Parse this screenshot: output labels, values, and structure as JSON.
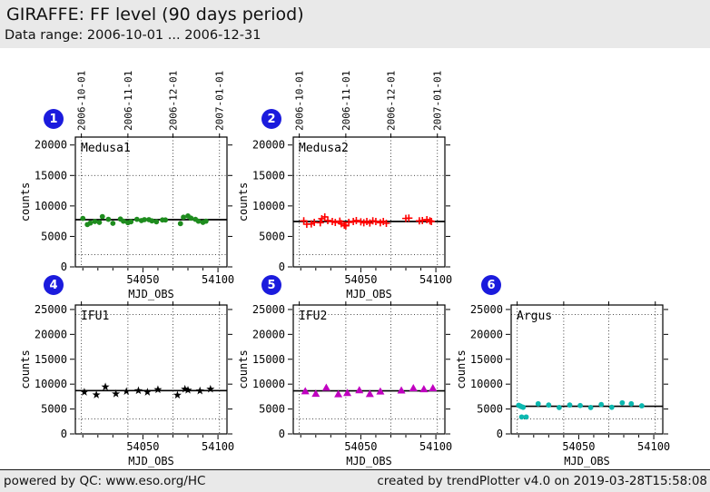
{
  "header": {
    "title": "GIRAFFE: FF level (90 days period)",
    "subtitle": "Data range: 2006-10-01 ... 2006-12-31"
  },
  "footer": {
    "left": "powered by QC: www.eso.org/HC",
    "right": "created by trendPlotter v4.0 on 2019-03-28T15:58:08"
  },
  "colors": {
    "header_bg": "#e9e9e9",
    "footer_bg": "#e9e9e9",
    "badge_blue": "#1b1bdd",
    "medusa1_green": "#1e8c1e",
    "medusa2_red": "#ff0000",
    "ifu1_black": "#000000",
    "ifu2_magenta": "#c000c0",
    "argus_teal": "#0cb8b0"
  },
  "chart_data": [
    {
      "badge": "1",
      "label": "Medusa1",
      "type": "scatter",
      "marker": "circle",
      "color": "#1e8c1e",
      "xlabel": "MJD_OBS",
      "ylabel": "counts",
      "xlim": [
        54005,
        54106
      ],
      "ylim": [
        0,
        21300
      ],
      "yticks": [
        0,
        5000,
        10000,
        15000,
        20000
      ],
      "xticks": [
        54050,
        54100
      ],
      "minor_xtick_step": 10,
      "top_dates": true,
      "months": [
        {
          "mjd": 54009,
          "label": "2006-10-01"
        },
        {
          "mjd": 54040,
          "label": "2006-11-01"
        },
        {
          "mjd": 54070,
          "label": "2006-12-01"
        },
        {
          "mjd": 54101,
          "label": "2007-01-01"
        }
      ],
      "ref_line": 7750,
      "thresholds": [
        2000,
        15000
      ],
      "points": [
        [
          54010,
          7950
        ],
        [
          54013,
          6950
        ],
        [
          54015,
          7200
        ],
        [
          54018,
          7450
        ],
        [
          54021,
          7300
        ],
        [
          54023,
          8250
        ],
        [
          54027,
          7800
        ],
        [
          54030,
          7150
        ],
        [
          54035,
          7850
        ],
        [
          54037,
          7500
        ],
        [
          54040,
          7250
        ],
        [
          54042,
          7400
        ],
        [
          54046,
          7800
        ],
        [
          54049,
          7600
        ],
        [
          54051,
          7750
        ],
        [
          54054,
          7750
        ],
        [
          54056,
          7550
        ],
        [
          54059,
          7400
        ],
        [
          54063,
          7700
        ],
        [
          54065,
          7700
        ],
        [
          54075,
          7100
        ],
        [
          54077,
          8150
        ],
        [
          54080,
          8350
        ],
        [
          54082,
          8000
        ],
        [
          54085,
          7800
        ],
        [
          54087,
          7500
        ],
        [
          54090,
          7300
        ],
        [
          54092,
          7500
        ]
      ]
    },
    {
      "badge": "2",
      "label": "Medusa2",
      "type": "scatter",
      "marker": "plus",
      "color": "#ff0000",
      "xlabel": "MJD_OBS",
      "ylabel": "counts",
      "xlim": [
        54005,
        54106
      ],
      "ylim": [
        0,
        21300
      ],
      "yticks": [
        0,
        5000,
        10000,
        15000,
        20000
      ],
      "xticks": [
        54050,
        54100
      ],
      "minor_xtick_step": 10,
      "top_dates": true,
      "months": [
        {
          "mjd": 54009,
          "label": "2006-10-01"
        },
        {
          "mjd": 54040,
          "label": "2006-11-01"
        },
        {
          "mjd": 54070,
          "label": "2006-12-01"
        },
        {
          "mjd": 54101,
          "label": "2007-01-01"
        }
      ],
      "ref_line": 7450,
      "thresholds": [
        2000,
        15000
      ],
      "points": [
        [
          54012,
          7550
        ],
        [
          54014,
          7000
        ],
        [
          54017,
          7050
        ],
        [
          54019,
          7300
        ],
        [
          54023,
          7250
        ],
        [
          54024,
          7900
        ],
        [
          54026,
          8200
        ],
        [
          54028,
          7600
        ],
        [
          54031,
          7450
        ],
        [
          54033,
          7300
        ],
        [
          54036,
          7500
        ],
        [
          54037,
          7100
        ],
        [
          54039,
          6850
        ],
        [
          54040,
          6750
        ],
        [
          54042,
          7300
        ],
        [
          54045,
          7450
        ],
        [
          54047,
          7600
        ],
        [
          54050,
          7400
        ],
        [
          54052,
          7250
        ],
        [
          54054,
          7450
        ],
        [
          54056,
          7200
        ],
        [
          54058,
          7550
        ],
        [
          54060,
          7450
        ],
        [
          54063,
          7250
        ],
        [
          54065,
          7450
        ],
        [
          54067,
          7150
        ],
        [
          54080,
          7950
        ],
        [
          54082,
          8000
        ],
        [
          54089,
          7550
        ],
        [
          54091,
          7600
        ],
        [
          54094,
          7750
        ],
        [
          54096,
          7550
        ],
        [
          54097,
          7450
        ]
      ]
    },
    {
      "badge": "4",
      "label": "IFU1",
      "type": "scatter",
      "marker": "star",
      "color": "#000000",
      "xlabel": "MJD_OBS",
      "ylabel": "counts",
      "xlim": [
        54005,
        54106
      ],
      "ylim": [
        0,
        25900
      ],
      "yticks": [
        0,
        5000,
        10000,
        15000,
        20000,
        25000
      ],
      "xticks": [
        54050,
        54100
      ],
      "minor_xtick_step": 10,
      "top_dates": false,
      "months": [
        {
          "mjd": 54009,
          "label": "2006-10-01"
        },
        {
          "mjd": 54040,
          "label": "2006-11-01"
        },
        {
          "mjd": 54070,
          "label": "2006-12-01"
        },
        {
          "mjd": 54101,
          "label": "2007-01-01"
        }
      ],
      "ref_line": 8700,
      "thresholds": [
        3000,
        24000
      ],
      "points": [
        [
          54011,
          8400
        ],
        [
          54019,
          7850
        ],
        [
          54025,
          9450
        ],
        [
          54032,
          8050
        ],
        [
          54039,
          8550
        ],
        [
          54047,
          8700
        ],
        [
          54053,
          8400
        ],
        [
          54060,
          8900
        ],
        [
          54073,
          7800
        ],
        [
          54078,
          9000
        ],
        [
          54080,
          8800
        ],
        [
          54088,
          8650
        ],
        [
          54095,
          9000
        ]
      ]
    },
    {
      "badge": "5",
      "label": "IFU2",
      "type": "scatter",
      "marker": "triangle",
      "color": "#c000c0",
      "xlabel": "MJD_OBS",
      "ylabel": "counts",
      "xlim": [
        54005,
        54106
      ],
      "ylim": [
        0,
        25900
      ],
      "yticks": [
        0,
        5000,
        10000,
        15000,
        20000,
        25000
      ],
      "xticks": [
        54050,
        54100
      ],
      "minor_xtick_step": 10,
      "top_dates": false,
      "months": [
        {
          "mjd": 54009,
          "label": "2006-10-01"
        },
        {
          "mjd": 54040,
          "label": "2006-11-01"
        },
        {
          "mjd": 54070,
          "label": "2006-12-01"
        },
        {
          "mjd": 54101,
          "label": "2007-01-01"
        }
      ],
      "ref_line": 8650,
      "thresholds": [
        3000,
        24000
      ],
      "points": [
        [
          54013,
          8600
        ],
        [
          54020,
          8100
        ],
        [
          54027,
          9300
        ],
        [
          54035,
          8000
        ],
        [
          54041,
          8250
        ],
        [
          54049,
          8800
        ],
        [
          54056,
          8050
        ],
        [
          54063,
          8550
        ],
        [
          54077,
          8750
        ],
        [
          54085,
          9200
        ],
        [
          54092,
          9000
        ],
        [
          54098,
          9200
        ]
      ]
    },
    {
      "badge": "6",
      "label": "Argus",
      "type": "scatter",
      "marker": "circle",
      "color": "#0cb8b0",
      "xlabel": "MJD_OBS",
      "ylabel": "counts",
      "xlim": [
        54005,
        54106
      ],
      "ylim": [
        0,
        25900
      ],
      "yticks": [
        0,
        5000,
        10000,
        15000,
        20000,
        25000
      ],
      "xticks": [
        54050,
        54100
      ],
      "minor_xtick_step": 10,
      "top_dates": false,
      "months": [
        {
          "mjd": 54009,
          "label": "2006-10-01"
        },
        {
          "mjd": 54040,
          "label": "2006-11-01"
        },
        {
          "mjd": 54070,
          "label": "2006-12-01"
        },
        {
          "mjd": 54101,
          "label": "2007-01-01"
        }
      ],
      "ref_line": 5550,
      "thresholds": [
        3000,
        24000
      ],
      "points": [
        [
          54010,
          5750
        ],
        [
          54011,
          5600
        ],
        [
          54012,
          5450
        ],
        [
          54013,
          5350
        ],
        [
          54012,
          3400
        ],
        [
          54015,
          3400
        ],
        [
          54023,
          6050
        ],
        [
          54030,
          5800
        ],
        [
          54037,
          5300
        ],
        [
          54044,
          5800
        ],
        [
          54051,
          5700
        ],
        [
          54058,
          5300
        ],
        [
          54065,
          5900
        ],
        [
          54072,
          5350
        ],
        [
          54079,
          6250
        ],
        [
          54085,
          6050
        ],
        [
          54092,
          5650
        ]
      ]
    }
  ]
}
